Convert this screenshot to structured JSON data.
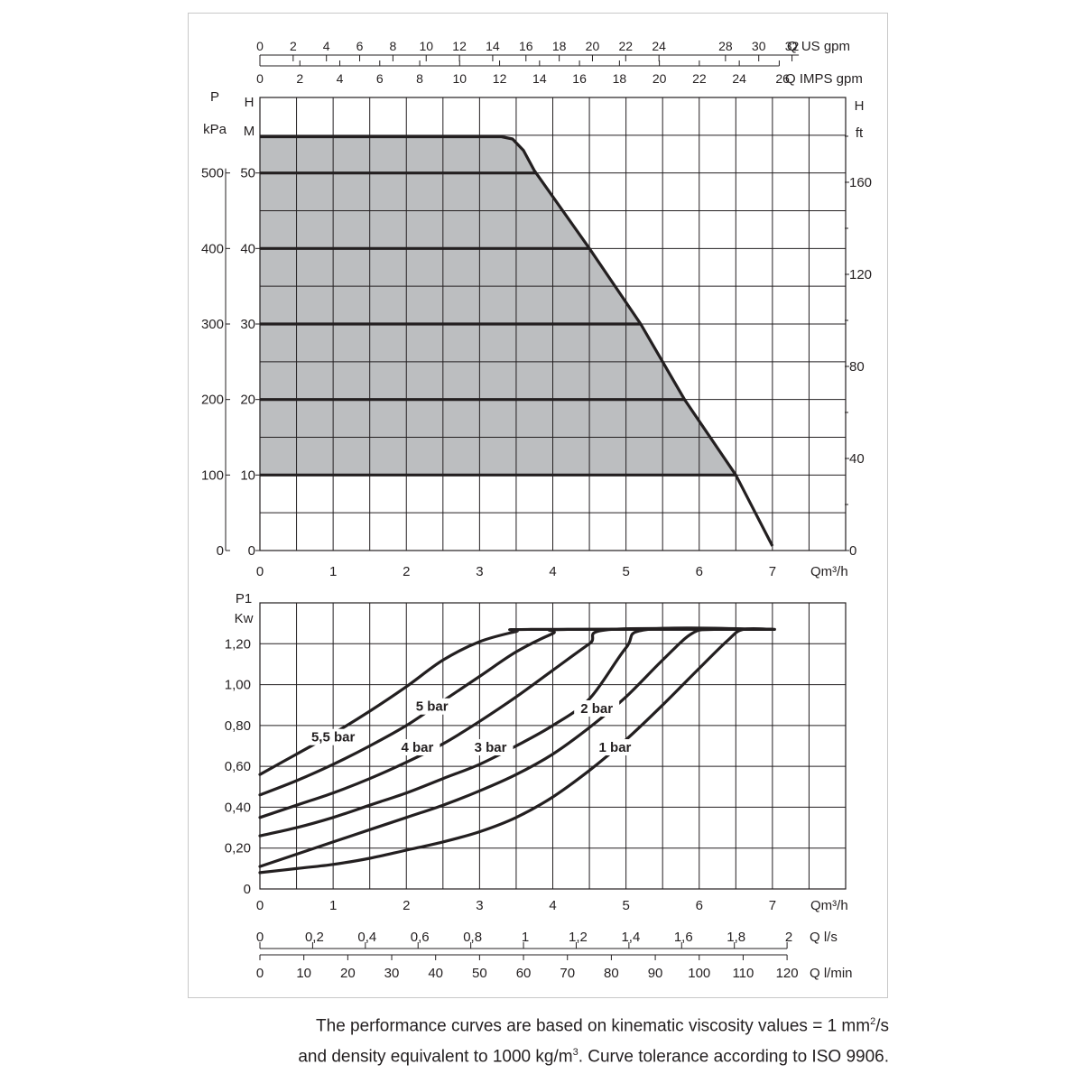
{
  "chart_data": [
    {
      "type": "area",
      "x_unit": "Qm³/h",
      "x_range": [
        0,
        8
      ],
      "x_ticks": [
        0,
        1,
        2,
        3,
        4,
        5,
        6,
        7
      ],
      "top_axes": {
        "us_gpm": {
          "label": "Q US gpm",
          "ticks": [
            0,
            2,
            4,
            6,
            8,
            10,
            12,
            14,
            16,
            18,
            20,
            22,
            24,
            28,
            30,
            32
          ]
        },
        "imp_gpm": {
          "label": "Q IMPS gpm",
          "ticks": [
            0,
            2,
            4,
            6,
            8,
            10,
            12,
            14,
            16,
            18,
            20,
            22,
            24,
            26
          ]
        }
      },
      "left_axis_kpa": {
        "label_1": "P",
        "label_2": "kPa",
        "ticks": [
          0,
          100,
          200,
          300,
          400,
          500
        ]
      },
      "left_axis_m": {
        "label_1": "H",
        "label_2": "M",
        "ticks": [
          0,
          10,
          20,
          30,
          40,
          50
        ]
      },
      "right_axis_ft": {
        "label_1": "H",
        "label_2": "ft",
        "ticks": [
          0,
          40,
          80,
          120,
          160
        ]
      },
      "y_range_m": [
        0,
        60
      ],
      "grid": true,
      "envelope_curve": {
        "x": [
          0,
          3.3,
          3.45,
          3.6,
          3.75,
          4.5,
          5.2,
          5.8,
          6.5,
          7.0
        ],
        "y": [
          54.8,
          54.8,
          54.5,
          53.0,
          50.3,
          40.0,
          30.0,
          20.0,
          10.0,
          0.6
        ]
      },
      "shaded_region": {
        "fill_color": "#bcbec0",
        "y_min_m": 10
      },
      "pressure_lines_m": [
        10,
        20,
        30,
        40,
        50
      ]
    },
    {
      "type": "line",
      "ylabel_1": "P1",
      "ylabel_2": "Kw",
      "x_unit": "Qm³/h",
      "x_range": [
        0,
        8
      ],
      "x_ticks": [
        0,
        1,
        2,
        3,
        4,
        5,
        6,
        7
      ],
      "y_range": [
        0,
        1.4
      ],
      "y_ticks": [
        "0",
        "0,20",
        "0,40",
        "0,60",
        "0,80",
        "1,00",
        "1,20"
      ],
      "grid": true,
      "bottom_axes": {
        "l_per_s": {
          "label": "Q l/s",
          "ticks": [
            "0",
            "0,2",
            "0,4",
            "0,6",
            "0,8",
            "1",
            "1,2",
            "1,4",
            "1,6",
            "1,8",
            "2"
          ]
        },
        "l_per_min": {
          "label": "Q l/min",
          "ticks": [
            "0",
            "10",
            "20",
            "30",
            "40",
            "50",
            "60",
            "70",
            "80",
            "90",
            "100",
            "110",
            "120"
          ]
        }
      },
      "series": [
        {
          "name": "5,5 bar",
          "x": [
            0,
            0.5,
            1.0,
            1.5,
            2.0,
            2.5,
            3.0,
            3.5,
            3.7
          ],
          "y": [
            0.56,
            0.66,
            0.76,
            0.87,
            0.99,
            1.12,
            1.21,
            1.26,
            1.27
          ],
          "label_at": [
            1.0,
            0.73
          ]
        },
        {
          "name": "5 bar",
          "x": [
            0,
            0.5,
            1.0,
            1.5,
            2.0,
            2.5,
            3.0,
            3.5,
            4.0,
            4.2
          ],
          "y": [
            0.46,
            0.53,
            0.61,
            0.7,
            0.8,
            0.92,
            1.04,
            1.16,
            1.25,
            1.27
          ],
          "label_at": [
            2.35,
            0.88
          ]
        },
        {
          "name": "4 bar",
          "x": [
            0,
            0.5,
            1.0,
            1.5,
            2.0,
            2.5,
            3.0,
            3.5,
            4.0,
            4.5,
            4.8
          ],
          "y": [
            0.35,
            0.41,
            0.47,
            0.54,
            0.62,
            0.71,
            0.82,
            0.94,
            1.07,
            1.2,
            1.27
          ],
          "label_at": [
            2.15,
            0.68
          ]
        },
        {
          "name": "3 bar",
          "x": [
            0,
            0.5,
            1.0,
            1.5,
            2.0,
            2.5,
            3.0,
            3.5,
            4.0,
            4.5,
            5.0,
            5.3
          ],
          "y": [
            0.26,
            0.3,
            0.35,
            0.41,
            0.47,
            0.54,
            0.61,
            0.7,
            0.8,
            0.93,
            1.18,
            1.27
          ],
          "label_at": [
            3.15,
            0.68
          ]
        },
        {
          "name": "2 bar",
          "x": [
            0,
            0.5,
            1.0,
            1.5,
            2.0,
            2.5,
            3.0,
            3.5,
            4.0,
            4.5,
            5.0,
            5.5,
            5.9,
            6.2
          ],
          "y": [
            0.11,
            0.17,
            0.23,
            0.29,
            0.35,
            0.41,
            0.48,
            0.56,
            0.66,
            0.79,
            0.94,
            1.12,
            1.25,
            1.27
          ],
          "label_at": [
            4.6,
            0.87
          ]
        },
        {
          "name": "1 bar",
          "x": [
            0,
            0.5,
            1.0,
            1.5,
            2.0,
            2.5,
            3.0,
            3.5,
            4.0,
            4.5,
            5.0,
            5.5,
            6.0,
            6.4,
            6.6,
            7.0
          ],
          "y": [
            0.08,
            0.1,
            0.12,
            0.15,
            0.19,
            0.23,
            0.28,
            0.35,
            0.45,
            0.58,
            0.73,
            0.9,
            1.08,
            1.22,
            1.27,
            1.27
          ],
          "label_at": [
            4.85,
            0.68
          ]
        }
      ]
    }
  ],
  "note": {
    "line1_prefix": "The performance curves are based on kinematic viscosity values = 1 mm",
    "line1_sup": "2",
    "line1_suffix": "/s",
    "line2_prefix": "and density equivalent to 1000 kg/m",
    "line2_sup": "3",
    "line2_suffix": ". Curve tolerance according to ISO 9906."
  }
}
